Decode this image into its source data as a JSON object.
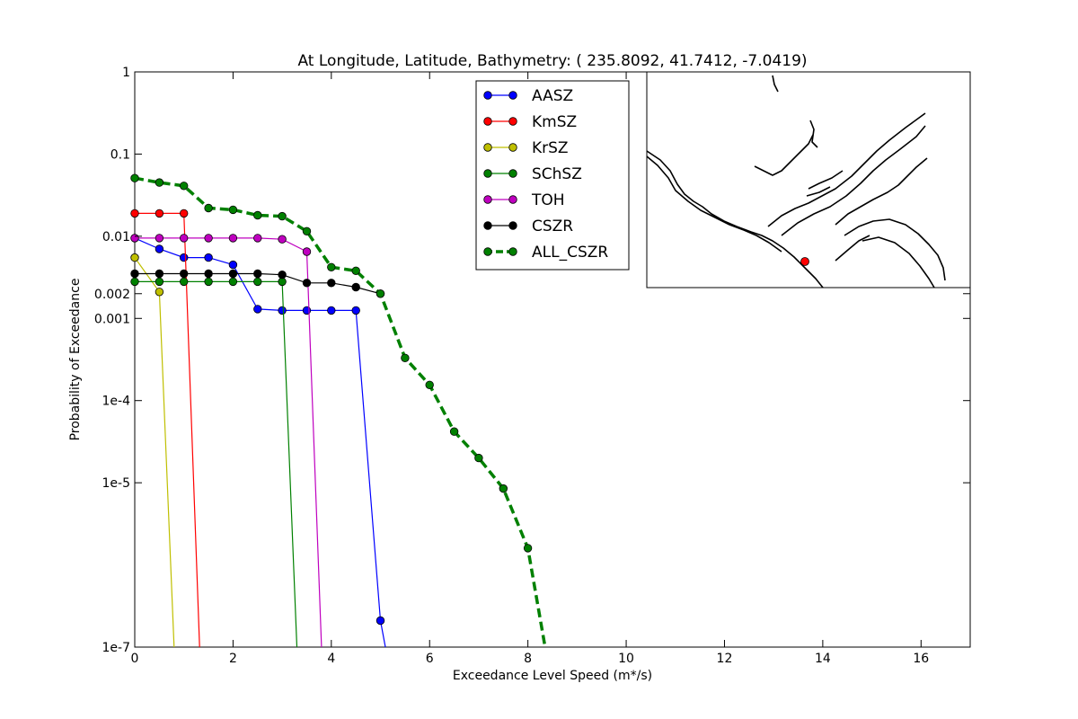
{
  "chart_data": {
    "type": "line",
    "title": "At Longitude, Latitude, Bathymetry:  ( 235.8092,  41.7412,  -7.0419)",
    "xlabel": "Exceedance Level Speed (m*/s)",
    "ylabel": "Probability of Exceedance",
    "xlim": [
      0,
      17
    ],
    "ylim": [
      1e-07,
      1
    ],
    "yscale": "log",
    "x_ticks": [
      0,
      2,
      4,
      6,
      8,
      10,
      12,
      14,
      16
    ],
    "x_tick_labels": [
      "0",
      "2",
      "4",
      "6",
      "8",
      "10",
      "12",
      "14",
      "16"
    ],
    "y_ticks": [
      1e-07,
      1e-05,
      0.0001,
      0.001,
      0.002,
      0.01,
      0.1,
      1
    ],
    "y_tick_labels": [
      "1e-7",
      "1e-5",
      "1e-4",
      "0.001",
      "0.002",
      "0.01",
      "0.1",
      "1"
    ],
    "legend_position": "top, left of inset map",
    "series": [
      {
        "name": "AASZ",
        "color": "#0000ff",
        "style": "solid",
        "x": [
          0,
          0.5,
          1.0,
          1.5,
          2.0,
          2.5,
          3.0,
          3.5,
          4.0,
          4.5,
          5.0,
          5.1
        ],
        "y": [
          0.0095,
          0.007,
          0.0055,
          0.0055,
          0.0045,
          0.0013,
          0.00125,
          0.00125,
          0.00125,
          0.00125,
          2.1e-07,
          1e-07
        ],
        "markers": [
          true,
          true,
          true,
          true,
          true,
          true,
          true,
          true,
          true,
          true,
          true,
          false
        ]
      },
      {
        "name": "KmSZ",
        "color": "#ff0000",
        "style": "solid",
        "x": [
          0,
          0.5,
          1.0,
          1.32
        ],
        "y": [
          0.019,
          0.019,
          0.019,
          1e-07
        ],
        "markers": [
          true,
          true,
          true,
          false
        ]
      },
      {
        "name": "KrSZ",
        "color": "#bfbf00",
        "style": "solid",
        "x": [
          0,
          0.5,
          0.8
        ],
        "y": [
          0.0055,
          0.0021,
          1e-07
        ],
        "markers": [
          true,
          true,
          false
        ]
      },
      {
        "name": "SChSZ",
        "color": "#008000",
        "style": "solid",
        "x": [
          0,
          0.5,
          1.0,
          1.5,
          2.0,
          2.5,
          3.0,
          3.3
        ],
        "y": [
          0.0028,
          0.0028,
          0.0028,
          0.0028,
          0.0028,
          0.0028,
          0.0028,
          1e-07
        ],
        "markers": [
          true,
          true,
          true,
          true,
          true,
          true,
          true,
          false
        ]
      },
      {
        "name": "TOH",
        "color": "#bf00bf",
        "style": "solid",
        "x": [
          0,
          0.5,
          1.0,
          1.5,
          2.0,
          2.5,
          3.0,
          3.5,
          3.8
        ],
        "y": [
          0.0095,
          0.0095,
          0.0095,
          0.0095,
          0.0095,
          0.0095,
          0.0092,
          0.0065,
          1e-07
        ],
        "markers": [
          true,
          true,
          true,
          true,
          true,
          true,
          true,
          true,
          false
        ]
      },
      {
        "name": "CSZR",
        "color": "#000000",
        "style": "solid",
        "x": [
          0,
          0.5,
          1.0,
          1.5,
          2.0,
          2.5,
          3.0,
          3.5,
          4.0,
          4.5,
          5.0
        ],
        "y": [
          0.0035,
          0.0035,
          0.0035,
          0.0035,
          0.0035,
          0.0035,
          0.0034,
          0.0027,
          0.0027,
          0.0024,
          0.002
        ],
        "markers": [
          true,
          true,
          true,
          true,
          true,
          true,
          true,
          true,
          true,
          true,
          true
        ]
      },
      {
        "name": "ALL_CSZR",
        "color": "#008000",
        "style": "dashed",
        "x": [
          0,
          0.5,
          1.0,
          1.5,
          2.0,
          2.5,
          3.0,
          3.5,
          4.0,
          4.5,
          5.0,
          5.5,
          6.0,
          6.5,
          7.0,
          7.5,
          8.0,
          8.35
        ],
        "y": [
          0.051,
          0.045,
          0.041,
          0.022,
          0.021,
          0.018,
          0.0175,
          0.0115,
          0.0042,
          0.0038,
          0.002,
          0.00033,
          0.000155,
          4.2e-05,
          2e-05,
          8.5e-06,
          1.6e-06,
          1e-07
        ],
        "markers": [
          true,
          true,
          true,
          true,
          true,
          true,
          true,
          true,
          true,
          true,
          true,
          true,
          true,
          true,
          true,
          true,
          true,
          false
        ]
      }
    ],
    "inset_map": {
      "marker_color": "#ff0000"
    }
  }
}
